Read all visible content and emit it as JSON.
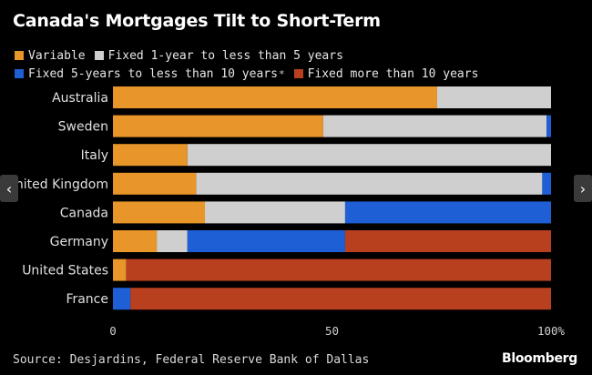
{
  "title": "Canada's Mortgages Tilt to Short-Term",
  "source": "Source: Desjardins, Federal Reserve Bank of Dallas",
  "brand": "Bloomberg",
  "nav": {
    "prev_icon": "‹",
    "next_icon": "›"
  },
  "legend_note_mark": "*",
  "colors": {
    "variable": "#e8962a",
    "fixed_1_5": "#cfcfcf",
    "fixed_5_10": "#1f5fd6",
    "fixed_10_plus": "#b8401f"
  },
  "chart_data": {
    "type": "bar",
    "orientation": "horizontal",
    "stacked": true,
    "title": "Canada's Mortgages Tilt to Short-Term",
    "xlabel": "",
    "ylabel": "",
    "xlim": [
      0,
      100
    ],
    "x_ticks": [
      "0",
      "50",
      "100%"
    ],
    "grid": false,
    "legend_position": "top",
    "categories": [
      "Australia",
      "Sweden",
      "Italy",
      "United Kingdom",
      "Canada",
      "Germany",
      "United States",
      "France"
    ],
    "series": [
      {
        "name": "Variable",
        "color": "#e8962a",
        "values": [
          74,
          48,
          17,
          19,
          21,
          10,
          3,
          0
        ]
      },
      {
        "name": "Fixed 1-year to less than 5 years",
        "color": "#cfcfcf",
        "values": [
          26,
          51,
          83,
          79,
          32,
          7,
          0,
          0
        ]
      },
      {
        "name": "Fixed 5-years to less than 10 years",
        "color": "#1f5fd6",
        "values": [
          0,
          1,
          0,
          2,
          47,
          36,
          0,
          4
        ]
      },
      {
        "name": "Fixed more than 10 years",
        "color": "#b8401f",
        "values": [
          0,
          0,
          0,
          0,
          0,
          47,
          97,
          96
        ]
      }
    ]
  }
}
